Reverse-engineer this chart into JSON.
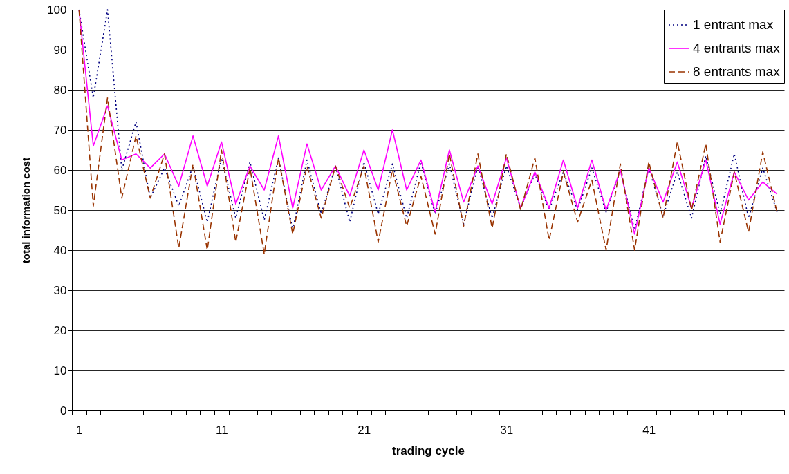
{
  "chart_data": {
    "type": "line",
    "xlabel": "trading cycle",
    "ylabel": "total information cost",
    "categories": [
      "1",
      null,
      null,
      null,
      null,
      null,
      null,
      null,
      null,
      null,
      "11",
      null,
      null,
      null,
      null,
      null,
      null,
      null,
      null,
      null,
      "21",
      null,
      null,
      null,
      null,
      null,
      null,
      null,
      null,
      null,
      "31",
      null,
      null,
      null,
      null,
      null,
      null,
      null,
      null,
      null,
      "41",
      null,
      null,
      null,
      null,
      null,
      null,
      null,
      null,
      null
    ],
    "ylim": [
      0,
      100
    ],
    "yticks": [
      0,
      10,
      20,
      30,
      40,
      50,
      60,
      70,
      80,
      90,
      100
    ],
    "grid": "y",
    "legend": "top right",
    "series": [
      {
        "name": "1 entrant max",
        "color": "#000080",
        "line_style": "dotted",
        "values": [
          100,
          78,
          100,
          60,
          72,
          53,
          60.5,
          51,
          61,
          47,
          63,
          48,
          62,
          47.5,
          63,
          45,
          62.5,
          49,
          61,
          47,
          62,
          49,
          61.5,
          48,
          62,
          49,
          61.5,
          46.5,
          61,
          48,
          61,
          50.5,
          59,
          50,
          59.5,
          50,
          60.5,
          49.5,
          60,
          45,
          60.5,
          48.5,
          59.5,
          48,
          63.5,
          49,
          64,
          48,
          60.5,
          49.5
        ]
      },
      {
        "name": "4 entrants max",
        "color": "#ff00ff",
        "line_style": "solid",
        "values": [
          100,
          66,
          76,
          62.5,
          64,
          60.5,
          64,
          56,
          68.5,
          56,
          67,
          51.5,
          61,
          55,
          68.5,
          50.5,
          66.5,
          55,
          61,
          53.5,
          65,
          55,
          70,
          55,
          62.5,
          49.5,
          65,
          52,
          61,
          51.5,
          63,
          50.5,
          59.5,
          50.5,
          62.5,
          50.5,
          62.5,
          50,
          60,
          44,
          60.5,
          52,
          62,
          50.5,
          62.5,
          46.5,
          59.5,
          52.5,
          57,
          54
        ]
      },
      {
        "name": "8 entrants max",
        "color": "#993300",
        "line_style": "dashed",
        "values": [
          100,
          51,
          78,
          53,
          68.5,
          53,
          64,
          40.5,
          61.5,
          40,
          65,
          42,
          60.5,
          39,
          63,
          44,
          61,
          48,
          61,
          50.5,
          61,
          42,
          60,
          46,
          58.5,
          44,
          64,
          46,
          64,
          45.5,
          64,
          50,
          63,
          42.5,
          59.5,
          47,
          57.5,
          40,
          61.5,
          40,
          62,
          48,
          67,
          50,
          66.5,
          42,
          59.5,
          44.5,
          64.5,
          49.5
        ]
      }
    ]
  }
}
